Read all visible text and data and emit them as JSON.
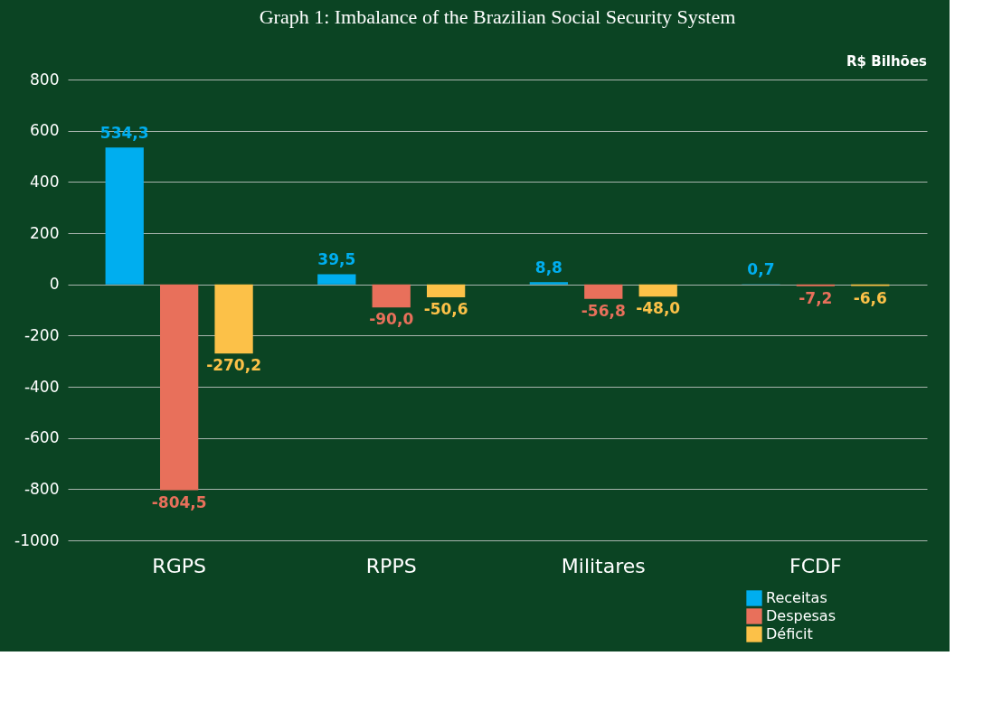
{
  "chart_data": {
    "type": "bar",
    "title": "Graph 1: Imbalance of the Brazilian Social Security System",
    "annotations": [
      "R$ Bilhões"
    ],
    "categories": [
      "RGPS",
      "RPPS",
      "Militares",
      "FCDF"
    ],
    "series": [
      {
        "name": "Receitas",
        "color": "#00aeef",
        "values": [
          534.3,
          39.5,
          8.8,
          0.7
        ],
        "value_labels": [
          "534,3",
          "39,5",
          "8,8",
          "0,7"
        ]
      },
      {
        "name": "Despesas",
        "color": "#e8705b",
        "values": [
          -804.5,
          -90.0,
          -56.8,
          -7.2
        ],
        "value_labels": [
          "-804,5",
          "-90,0",
          "-56,8",
          "-7,2"
        ]
      },
      {
        "name": "Déficit",
        "color": "#fcc148",
        "values": [
          -270.2,
          -50.6,
          -48.0,
          -6.6
        ],
        "value_labels": [
          "-270,2",
          "-50,6",
          "-48,0",
          "-6,6"
        ]
      }
    ],
    "ylim": [
      -1000,
      800
    ],
    "yticks": [
      {
        "value": -1000,
        "label": "-1000"
      },
      {
        "value": -800,
        "label": "-800"
      },
      {
        "value": -600,
        "label": "-600"
      },
      {
        "value": -400,
        "label": "-400"
      },
      {
        "value": -200,
        "label": "-200"
      },
      0,
      200,
      400,
      600,
      800
    ],
    "grid": "y",
    "legend": "bottom right"
  }
}
